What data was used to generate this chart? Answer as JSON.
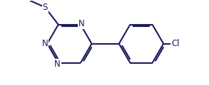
{
  "bg_color": "#ffffff",
  "line_color": "#1a1a5e",
  "line_width": 1.5,
  "font_size": 8.5,
  "atom_color": "#1a1a5e",
  "figsize": [
    2.93,
    1.2
  ],
  "dpi": 100,
  "xlim": [
    0.0,
    8.5
  ],
  "ylim": [
    0.3,
    3.8
  ]
}
